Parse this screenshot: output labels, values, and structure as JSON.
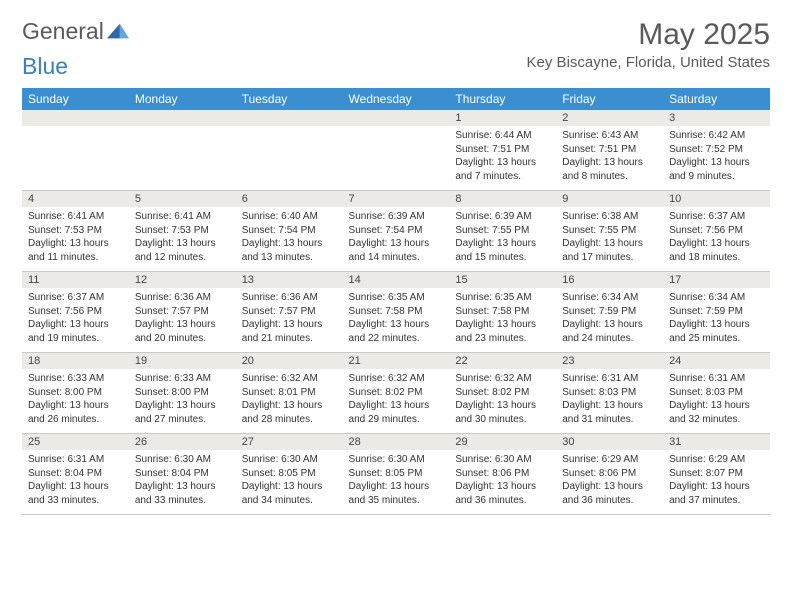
{
  "brand": {
    "word1": "General",
    "word2": "Blue"
  },
  "title": {
    "month": "May 2025",
    "location": "Key Biscayne, Florida, United States"
  },
  "colors": {
    "header_bg": "#3b8fd1",
    "header_fg": "#ffffff",
    "daynum_bg": "#eceae7",
    "text": "#333333",
    "muted": "#5a5a5a",
    "row_border": "#c9c9c9",
    "brand_blue": "#3b7fbd"
  },
  "weekdays": [
    "Sunday",
    "Monday",
    "Tuesday",
    "Wednesday",
    "Thursday",
    "Friday",
    "Saturday"
  ],
  "grid": {
    "start_day_index": 4,
    "days_in_month": 31
  },
  "days": {
    "1": {
      "sunrise": "6:44 AM",
      "sunset": "7:51 PM",
      "daylight": "13 hours and 7 minutes."
    },
    "2": {
      "sunrise": "6:43 AM",
      "sunset": "7:51 PM",
      "daylight": "13 hours and 8 minutes."
    },
    "3": {
      "sunrise": "6:42 AM",
      "sunset": "7:52 PM",
      "daylight": "13 hours and 9 minutes."
    },
    "4": {
      "sunrise": "6:41 AM",
      "sunset": "7:53 PM",
      "daylight": "13 hours and 11 minutes."
    },
    "5": {
      "sunrise": "6:41 AM",
      "sunset": "7:53 PM",
      "daylight": "13 hours and 12 minutes."
    },
    "6": {
      "sunrise": "6:40 AM",
      "sunset": "7:54 PM",
      "daylight": "13 hours and 13 minutes."
    },
    "7": {
      "sunrise": "6:39 AM",
      "sunset": "7:54 PM",
      "daylight": "13 hours and 14 minutes."
    },
    "8": {
      "sunrise": "6:39 AM",
      "sunset": "7:55 PM",
      "daylight": "13 hours and 15 minutes."
    },
    "9": {
      "sunrise": "6:38 AM",
      "sunset": "7:55 PM",
      "daylight": "13 hours and 17 minutes."
    },
    "10": {
      "sunrise": "6:37 AM",
      "sunset": "7:56 PM",
      "daylight": "13 hours and 18 minutes."
    },
    "11": {
      "sunrise": "6:37 AM",
      "sunset": "7:56 PM",
      "daylight": "13 hours and 19 minutes."
    },
    "12": {
      "sunrise": "6:36 AM",
      "sunset": "7:57 PM",
      "daylight": "13 hours and 20 minutes."
    },
    "13": {
      "sunrise": "6:36 AM",
      "sunset": "7:57 PM",
      "daylight": "13 hours and 21 minutes."
    },
    "14": {
      "sunrise": "6:35 AM",
      "sunset": "7:58 PM",
      "daylight": "13 hours and 22 minutes."
    },
    "15": {
      "sunrise": "6:35 AM",
      "sunset": "7:58 PM",
      "daylight": "13 hours and 23 minutes."
    },
    "16": {
      "sunrise": "6:34 AM",
      "sunset": "7:59 PM",
      "daylight": "13 hours and 24 minutes."
    },
    "17": {
      "sunrise": "6:34 AM",
      "sunset": "7:59 PM",
      "daylight": "13 hours and 25 minutes."
    },
    "18": {
      "sunrise": "6:33 AM",
      "sunset": "8:00 PM",
      "daylight": "13 hours and 26 minutes."
    },
    "19": {
      "sunrise": "6:33 AM",
      "sunset": "8:00 PM",
      "daylight": "13 hours and 27 minutes."
    },
    "20": {
      "sunrise": "6:32 AM",
      "sunset": "8:01 PM",
      "daylight": "13 hours and 28 minutes."
    },
    "21": {
      "sunrise": "6:32 AM",
      "sunset": "8:02 PM",
      "daylight": "13 hours and 29 minutes."
    },
    "22": {
      "sunrise": "6:32 AM",
      "sunset": "8:02 PM",
      "daylight": "13 hours and 30 minutes."
    },
    "23": {
      "sunrise": "6:31 AM",
      "sunset": "8:03 PM",
      "daylight": "13 hours and 31 minutes."
    },
    "24": {
      "sunrise": "6:31 AM",
      "sunset": "8:03 PM",
      "daylight": "13 hours and 32 minutes."
    },
    "25": {
      "sunrise": "6:31 AM",
      "sunset": "8:04 PM",
      "daylight": "13 hours and 33 minutes."
    },
    "26": {
      "sunrise": "6:30 AM",
      "sunset": "8:04 PM",
      "daylight": "13 hours and 33 minutes."
    },
    "27": {
      "sunrise": "6:30 AM",
      "sunset": "8:05 PM",
      "daylight": "13 hours and 34 minutes."
    },
    "28": {
      "sunrise": "6:30 AM",
      "sunset": "8:05 PM",
      "daylight": "13 hours and 35 minutes."
    },
    "29": {
      "sunrise": "6:30 AM",
      "sunset": "8:06 PM",
      "daylight": "13 hours and 36 minutes."
    },
    "30": {
      "sunrise": "6:29 AM",
      "sunset": "8:06 PM",
      "daylight": "13 hours and 36 minutes."
    },
    "31": {
      "sunrise": "6:29 AM",
      "sunset": "8:07 PM",
      "daylight": "13 hours and 37 minutes."
    }
  },
  "labels": {
    "sunrise_prefix": "Sunrise: ",
    "sunset_prefix": "Sunset: ",
    "daylight_prefix": "Daylight: "
  }
}
